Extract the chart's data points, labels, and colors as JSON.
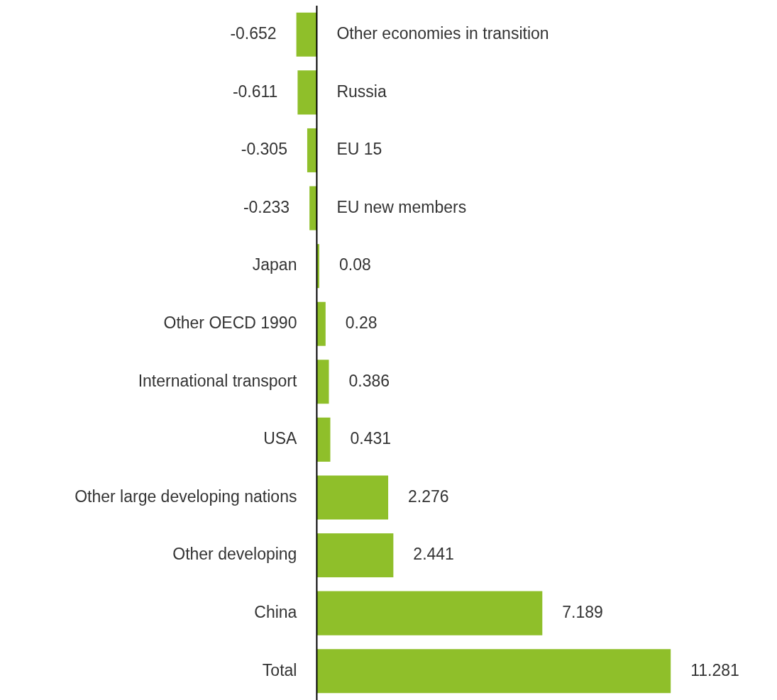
{
  "chart_data": {
    "type": "bar",
    "orientation": "horizontal",
    "categories": [
      "Other economies in transition",
      "Russia",
      "EU 15",
      "EU new members",
      "Japan",
      "Other OECD 1990",
      "International transport",
      "USA",
      "Other large developing nations",
      "Other developing",
      "China",
      "Total"
    ],
    "values": [
      -0.652,
      -0.611,
      -0.305,
      -0.233,
      0.08,
      0.28,
      0.386,
      0.431,
      2.276,
      2.441,
      7.189,
      11.281
    ],
    "color": "#8fbf2a",
    "data_labels": true,
    "tick_labels": false
  }
}
